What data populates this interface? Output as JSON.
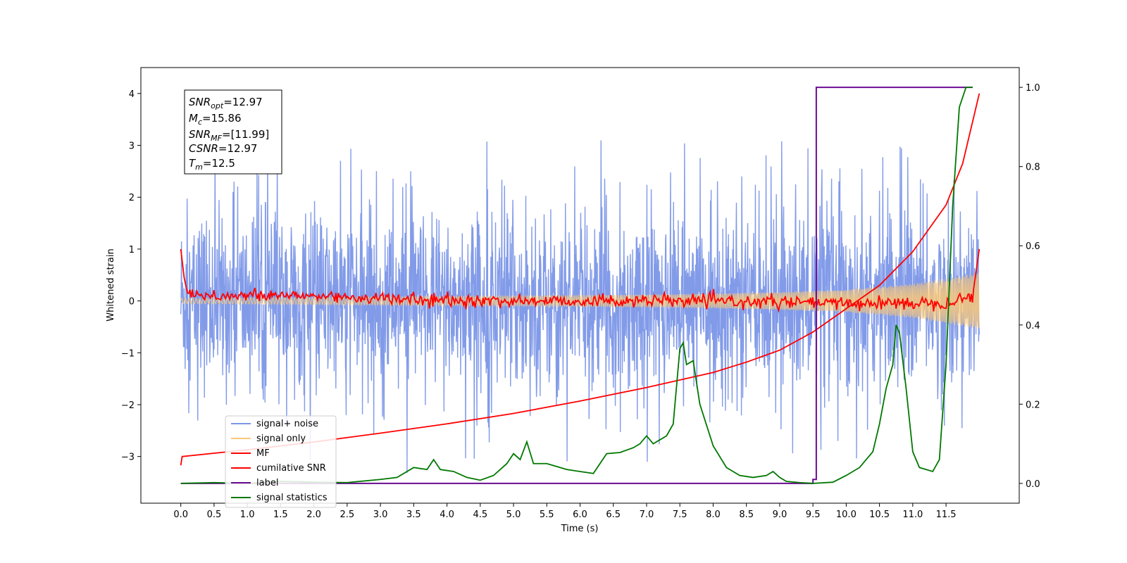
{
  "chart_data": {
    "type": "line",
    "xlabel": "Time (s)",
    "ylabel": "Whitened strain",
    "xlim": [
      -0.6,
      12.6
    ],
    "ylim_left": [
      -3.9,
      4.5
    ],
    "ylim_right": [
      -0.05,
      1.05
    ],
    "x_ticks": [
      "0.0",
      "0.5",
      "1.0",
      "1.5",
      "2.0",
      "2.5",
      "3.0",
      "3.5",
      "4.0",
      "4.5",
      "5.0",
      "5.5",
      "6.0",
      "6.5",
      "7.0",
      "7.5",
      "8.0",
      "8.5",
      "9.0",
      "9.5",
      "10.0",
      "10.5",
      "11.0",
      "11.5"
    ],
    "y_ticks_left": [
      "−3",
      "−2",
      "−1",
      "0",
      "1",
      "2",
      "3",
      "4"
    ],
    "y_ticks_right": [
      "0.0",
      "0.2",
      "0.4",
      "0.6",
      "0.8",
      "1.0"
    ],
    "annotation": {
      "snr_opt": {
        "symbol": "SNR",
        "sub": "opt",
        "value": "=12.97"
      },
      "mc": {
        "symbol": "M",
        "sub": "c",
        "value": "=15.86"
      },
      "snr_mf": {
        "symbol": "SNR",
        "sub": "MF",
        "value": "=[11.99]"
      },
      "csnr": {
        "symbol": "CSNR",
        "sub": "",
        "value": "=12.97"
      },
      "tm": {
        "symbol": "T",
        "sub": "m",
        "value": "=12.5"
      }
    },
    "series": [
      {
        "name": "signal+ noise",
        "color": "#7b96e8",
        "axis": "left",
        "note": "dense noisy waveform, approx ±1.5 band with spikes to about +3.3 / −3.5, from 0.0 s to 12.0 s",
        "x": [
          0.0,
          12.0
        ],
        "envelope": [
          -1.5,
          1.5
        ],
        "spike_max": 3.3,
        "spike_min": -3.5
      },
      {
        "name": "signal only",
        "color": "#f7c77a",
        "axis": "left",
        "note": "chirp-like oscillation, amplitude about 0.05 growing to about 0.55 at 12.0 s",
        "x": [
          0.0,
          1.0,
          2.0,
          3.0,
          4.0,
          5.0,
          6.0,
          7.0,
          8.0,
          9.0,
          10.0,
          10.5,
          11.0,
          11.5,
          12.0
        ],
        "amplitude": [
          0.05,
          0.06,
          0.07,
          0.08,
          0.09,
          0.1,
          0.11,
          0.12,
          0.14,
          0.17,
          0.22,
          0.27,
          0.33,
          0.43,
          0.55
        ]
      },
      {
        "name": "MF",
        "color": "#ff0000",
        "axis": "left",
        "note": "matched filter output, starts at 1.0, quickly drops to about 0.05, noisy wiggles ±0.2, ends rising to 1.0 at 12.0 s",
        "x": [
          0.0,
          0.05,
          0.1,
          0.5,
          2.0,
          4.0,
          6.0,
          8.0,
          10.0,
          11.5,
          11.9,
          12.0
        ],
        "values": [
          1.0,
          0.45,
          0.15,
          0.1,
          0.1,
          0.0,
          0.0,
          0.0,
          -0.05,
          -0.03,
          0.1,
          1.0
        ]
      },
      {
        "name": "cumilative SNR",
        "color": "#ff0000",
        "axis": "left",
        "x": [
          0.0,
          0.02,
          1.0,
          2.0,
          3.0,
          4.0,
          5.0,
          6.0,
          7.0,
          8.0,
          8.5,
          9.0,
          9.5,
          10.0,
          10.5,
          11.0,
          11.5,
          11.75,
          12.0
        ],
        "values": [
          -3.17,
          -3.0,
          -2.87,
          -2.72,
          -2.55,
          -2.37,
          -2.17,
          -1.93,
          -1.67,
          -1.38,
          -1.18,
          -0.95,
          -0.6,
          -0.15,
          0.3,
          0.95,
          1.85,
          2.65,
          4.0
        ]
      },
      {
        "name": "label",
        "color": "#6a0d91",
        "axis": "right",
        "x": [
          0.0,
          9.5,
          9.5,
          9.55,
          9.55,
          11.9
        ],
        "values": [
          0.0,
          0.0,
          0.01,
          0.01,
          1.0,
          1.0
        ]
      },
      {
        "name": "signal statistics",
        "color": "#007800",
        "axis": "right",
        "x": [
          0.0,
          0.5,
          1.0,
          1.5,
          2.0,
          2.5,
          3.0,
          3.25,
          3.5,
          3.7,
          3.8,
          3.9,
          4.1,
          4.3,
          4.5,
          4.7,
          4.9,
          5.0,
          5.1,
          5.2,
          5.3,
          5.5,
          5.6,
          5.8,
          6.0,
          6.2,
          6.4,
          6.6,
          6.8,
          6.9,
          7.0,
          7.1,
          7.2,
          7.3,
          7.4,
          7.5,
          7.55,
          7.6,
          7.7,
          7.8,
          8.0,
          8.2,
          8.4,
          8.6,
          8.8,
          8.9,
          9.0,
          9.1,
          9.3,
          9.5,
          9.8,
          10.0,
          10.2,
          10.4,
          10.5,
          10.6,
          10.7,
          10.75,
          10.8,
          10.9,
          11.0,
          11.1,
          11.2,
          11.3,
          11.4,
          11.5,
          11.6,
          11.7,
          11.8,
          11.9
        ],
        "values": [
          0.0,
          0.002,
          0.0,
          0.005,
          0.003,
          0.002,
          0.01,
          0.015,
          0.04,
          0.035,
          0.06,
          0.035,
          0.03,
          0.015,
          0.008,
          0.02,
          0.05,
          0.075,
          0.06,
          0.105,
          0.05,
          0.05,
          0.045,
          0.035,
          0.03,
          0.025,
          0.075,
          0.078,
          0.09,
          0.1,
          0.12,
          0.1,
          0.11,
          0.12,
          0.15,
          0.34,
          0.355,
          0.3,
          0.31,
          0.2,
          0.095,
          0.04,
          0.02,
          0.015,
          0.02,
          0.03,
          0.015,
          0.005,
          0.002,
          0.0,
          0.003,
          0.02,
          0.04,
          0.08,
          0.15,
          0.24,
          0.3,
          0.4,
          0.38,
          0.24,
          0.08,
          0.04,
          0.035,
          0.03,
          0.06,
          0.3,
          0.7,
          0.95,
          1.0,
          1.0
        ]
      }
    ],
    "legend_position": "lower-left"
  }
}
